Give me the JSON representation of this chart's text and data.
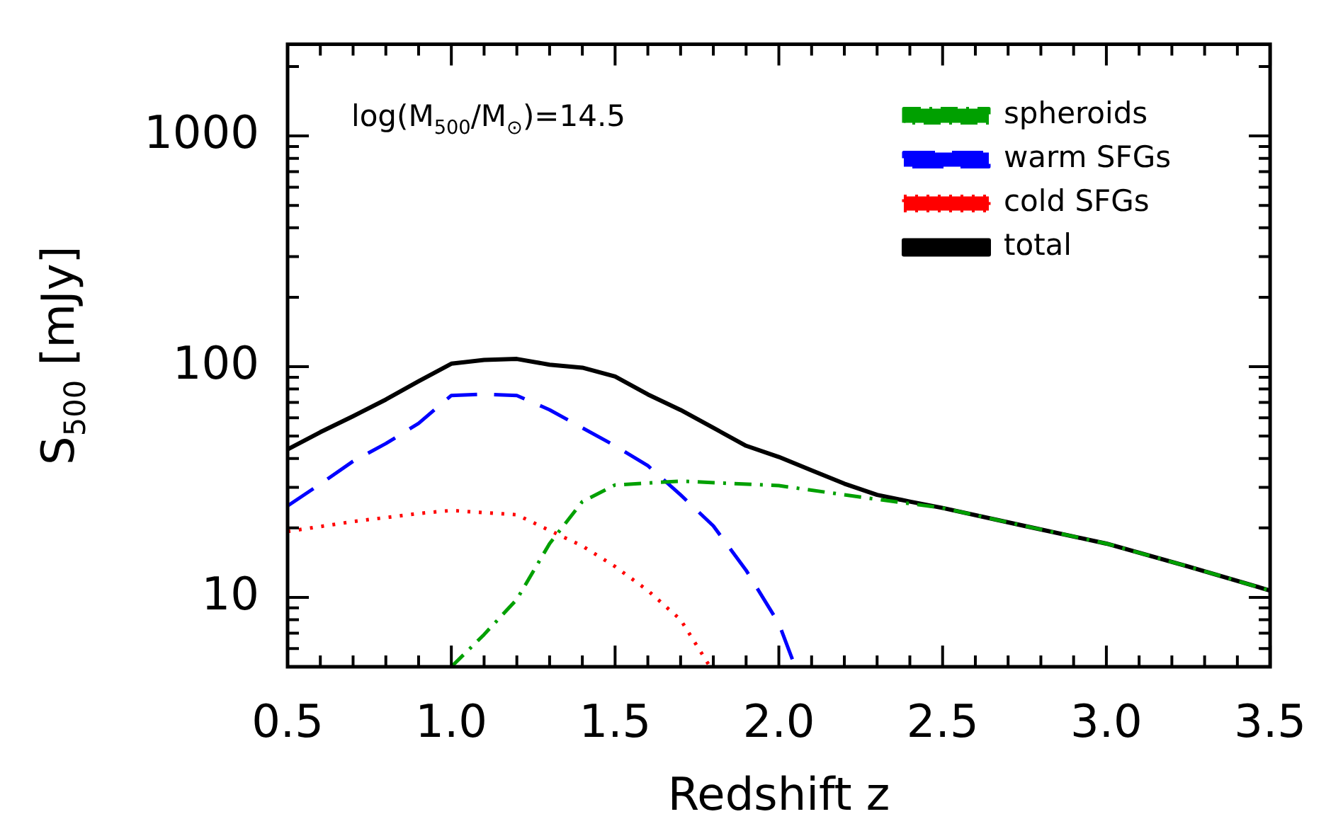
{
  "chart_data": {
    "type": "line",
    "xlabel": "Redshift z",
    "ylabel": "S$_{500}$ [mJy]",
    "annotations": [
      "log(M$_{500}$/M$_{⊙}$)=14.5"
    ],
    "xlim": [
      0.5,
      3.5
    ],
    "ylim": [
      5,
      2500
    ],
    "log": "y",
    "legend": "top right",
    "grid": false,
    "marker": "none",
    "xticks": [
      0.5,
      {
        "value": 0.6,
        "label": null
      },
      {
        "value": 0.7,
        "label": null
      },
      {
        "value": 0.8,
        "label": null
      },
      {
        "value": 0.9,
        "label": null
      },
      {
        "value": 1,
        "label": "1.0"
      },
      {
        "value": 1.1,
        "label": null
      },
      {
        "value": 1.2,
        "label": null
      },
      {
        "value": 1.3,
        "label": null
      },
      {
        "value": 1.4,
        "label": null
      },
      1.5,
      {
        "value": 1.6,
        "label": null
      },
      {
        "value": 1.7,
        "label": null
      },
      {
        "value": 1.8,
        "label": null
      },
      {
        "value": 1.9,
        "label": null
      },
      {
        "value": 2,
        "label": "2.0"
      },
      {
        "value": 2.1,
        "label": null
      },
      {
        "value": 2.2,
        "label": null
      },
      {
        "value": 2.3,
        "label": null
      },
      {
        "value": 2.4,
        "label": null
      },
      2.5,
      {
        "value": 2.6,
        "label": null
      },
      {
        "value": 2.7,
        "label": null
      },
      {
        "value": 2.8,
        "label": null
      },
      {
        "value": 2.9,
        "label": null
      },
      {
        "value": 3,
        "label": "3.0"
      },
      {
        "value": 3.1,
        "label": null
      },
      {
        "value": 3.2,
        "label": null
      },
      {
        "value": 3.3,
        "label": null
      },
      {
        "value": 3.4,
        "label": null
      },
      3.5
    ],
    "yticks": [
      {
        "value": 6,
        "label": null
      },
      {
        "value": 7,
        "label": null
      },
      {
        "value": 8,
        "label": null
      },
      {
        "value": 9,
        "label": null
      },
      10,
      {
        "value": 20,
        "label": null
      },
      {
        "value": 30,
        "label": null
      },
      {
        "value": 40,
        "label": null
      },
      {
        "value": 50,
        "label": null
      },
      {
        "value": 60,
        "label": null
      },
      {
        "value": 70,
        "label": null
      },
      {
        "value": 80,
        "label": null
      },
      {
        "value": 90,
        "label": null
      },
      100,
      {
        "value": 200,
        "label": null
      },
      {
        "value": 300,
        "label": null
      },
      {
        "value": 400,
        "label": null
      },
      {
        "value": 500,
        "label": null
      },
      {
        "value": 600,
        "label": null
      },
      {
        "value": 700,
        "label": null
      },
      {
        "value": 800,
        "label": null
      },
      {
        "value": 900,
        "label": null
      },
      1000,
      {
        "value": 2000,
        "label": null
      }
    ],
    "series": [
      {
        "name": "spheroids",
        "color": "#00a000",
        "line_style": "dashdot",
        "x": [
          1.0,
          1.1,
          1.2,
          1.3,
          1.4,
          1.5,
          1.7,
          2.0,
          2.25,
          2.5,
          2.75,
          3.0,
          3.25,
          3.5
        ],
        "values": [
          5,
          6.9,
          9.8,
          17.1,
          26,
          30.7,
          31.9,
          30.5,
          27.2,
          24.4,
          20.4,
          17.1,
          13.6,
          10.7
        ]
      },
      {
        "name": "warm SFGs",
        "color": "#0000ff",
        "line_style": "dashed",
        "x": [
          0.5,
          0.6,
          0.7,
          0.8,
          0.9,
          1.0,
          1.1,
          1.2,
          1.3,
          1.4,
          1.5,
          1.6,
          1.7,
          1.8,
          1.9,
          2.0,
          2.05
        ],
        "values": [
          24.9,
          31,
          38.9,
          46.4,
          56.8,
          75,
          76,
          75,
          65,
          54.3,
          45.4,
          37.2,
          27.8,
          20.4,
          13.1,
          7.7,
          5
        ]
      },
      {
        "name": "cold SFGs",
        "color": "#ff0000",
        "line_style": "dotted",
        "x": [
          0.5,
          0.7,
          0.9,
          1.0,
          1.2,
          1.3,
          1.4,
          1.5,
          1.6,
          1.7,
          1.79
        ],
        "values": [
          19.3,
          21.3,
          23.1,
          23.8,
          22.8,
          19.5,
          16.7,
          13.6,
          10.7,
          8.0,
          5
        ]
      },
      {
        "name": "total",
        "color": "#000000",
        "line_style": "solid",
        "x": [
          0.5,
          0.6,
          0.7,
          0.8,
          0.9,
          1.0,
          1.1,
          1.2,
          1.3,
          1.4,
          1.5,
          1.6,
          1.7,
          1.8,
          1.9,
          2.0,
          2.1,
          2.2,
          2.3,
          2.4,
          2.5,
          2.75,
          3.0,
          3.25,
          3.5
        ],
        "values": [
          43.8,
          52,
          61,
          72,
          86.5,
          103,
          107,
          108,
          102,
          99,
          90.6,
          75.8,
          64.9,
          54.3,
          45.4,
          40.6,
          35.5,
          31.1,
          27.8,
          26,
          24.4,
          20.4,
          17.1,
          13.6,
          10.7
        ]
      }
    ]
  }
}
